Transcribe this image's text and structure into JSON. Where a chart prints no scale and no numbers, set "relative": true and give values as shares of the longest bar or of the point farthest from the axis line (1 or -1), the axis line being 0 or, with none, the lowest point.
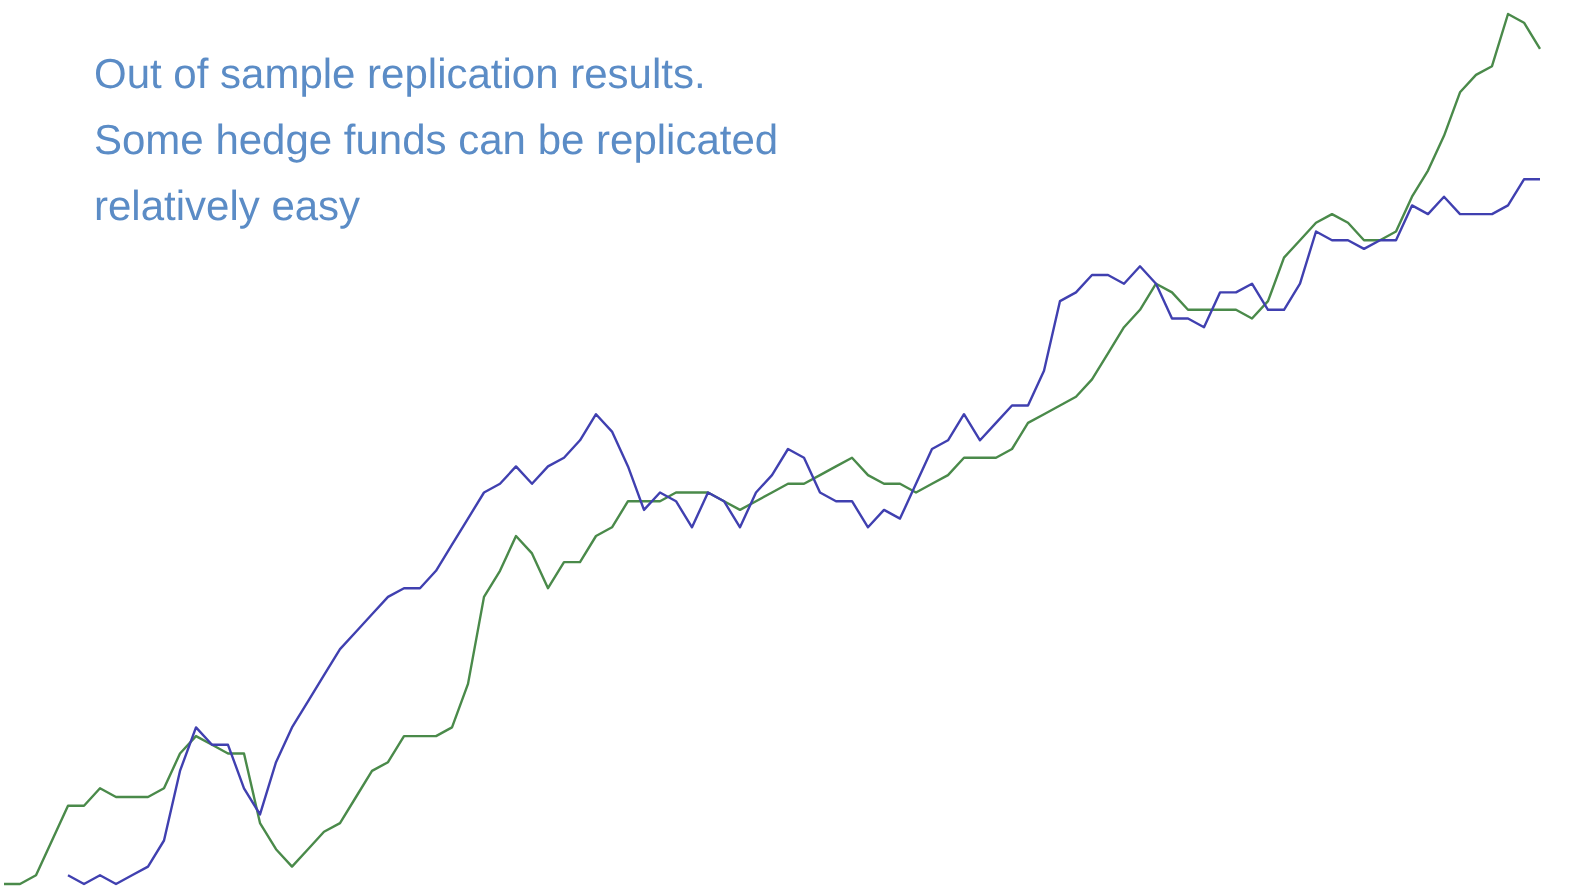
{
  "chart_data": {
    "type": "line",
    "relative": true,
    "categories": [
      null,
      null,
      null,
      null,
      null,
      null,
      null,
      null,
      null,
      null,
      null,
      null,
      null,
      null,
      null,
      null,
      null,
      null,
      null,
      null,
      null,
      null,
      null,
      null,
      null,
      null,
      null,
      null,
      null,
      null,
      null,
      null,
      null,
      null,
      null,
      null,
      null,
      null,
      null,
      null,
      null,
      null,
      null,
      null,
      null,
      null,
      null,
      null,
      null,
      null,
      null,
      null,
      null,
      null,
      null,
      null,
      null,
      null,
      null,
      null,
      null,
      null,
      null,
      null,
      null,
      null,
      null,
      null,
      null,
      null,
      null,
      null,
      null,
      null,
      null,
      null,
      null,
      null,
      null,
      null,
      null,
      null,
      null,
      null,
      null,
      null,
      null,
      null,
      null,
      null,
      null,
      null,
      null,
      null,
      null,
      null,
      null
    ],
    "series": [
      {
        "color": "#4a8a4a",
        "values": [
          0,
          0,
          0.01,
          0.05,
          0.09,
          0.09,
          0.11,
          0.1,
          0.1,
          0.1,
          0.11,
          0.15,
          0.17,
          0.16,
          0.15,
          0.15,
          0.07,
          0.04,
          0.02,
          0.04,
          0.06,
          0.07,
          0.1,
          0.13,
          0.14,
          0.17,
          0.17,
          0.17,
          0.18,
          0.23,
          0.33,
          0.36,
          0.4,
          0.38,
          0.34,
          0.37,
          0.37,
          0.4,
          0.41,
          0.44,
          0.44,
          0.44,
          0.45,
          0.45,
          0.45,
          0.44,
          0.43,
          0.44,
          0.45,
          0.46,
          0.46,
          0.47,
          0.48,
          0.49,
          0.47,
          0.46,
          0.46,
          0.45,
          0.46,
          0.47,
          0.49,
          0.49,
          0.49,
          0.5,
          0.53,
          0.54,
          0.55,
          0.56,
          0.58,
          0.61,
          0.64,
          0.66,
          0.69,
          0.68,
          0.66,
          0.66,
          0.66,
          0.66,
          0.65,
          0.67,
          0.72,
          0.74,
          0.76,
          0.77,
          0.76,
          0.74,
          0.74,
          0.75,
          0.79,
          0.82,
          0.86,
          0.91,
          0.93,
          0.94,
          1,
          0.99,
          0.96
        ]
      },
      {
        "color": "#4040b0",
        "values": [
          null,
          null,
          null,
          null,
          0.01,
          0,
          0.01,
          0,
          0.01,
          0.02,
          0.05,
          0.13,
          0.18,
          0.16,
          0.16,
          0.11,
          0.08,
          0.14,
          0.18,
          0.21,
          0.24,
          0.27,
          0.29,
          0.31,
          0.33,
          0.34,
          0.34,
          0.36,
          0.39,
          0.42,
          0.45,
          0.46,
          0.48,
          0.46,
          0.48,
          0.49,
          0.51,
          0.54,
          0.52,
          0.48,
          0.43,
          0.45,
          0.44,
          0.41,
          0.45,
          0.44,
          0.41,
          0.45,
          0.47,
          0.5,
          0.49,
          0.45,
          0.44,
          0.44,
          0.41,
          0.43,
          0.42,
          0.46,
          0.5,
          0.51,
          0.54,
          0.51,
          0.53,
          0.55,
          0.55,
          0.59,
          0.67,
          0.68,
          0.7,
          0.7,
          0.69,
          0.71,
          0.69,
          0.65,
          0.65,
          0.64,
          0.68,
          0.68,
          0.69,
          0.66,
          0.66,
          0.69,
          0.75,
          0.74,
          0.74,
          0.73,
          0.74,
          0.74,
          0.78,
          0.77,
          0.79,
          0.77,
          0.77,
          0.77,
          0.78,
          0.81,
          0.81
        ]
      }
    ],
    "annotations": [
      "Out of sample replication results.",
      "Some hedge funds can be replicated",
      "relatively easy"
    ]
  }
}
